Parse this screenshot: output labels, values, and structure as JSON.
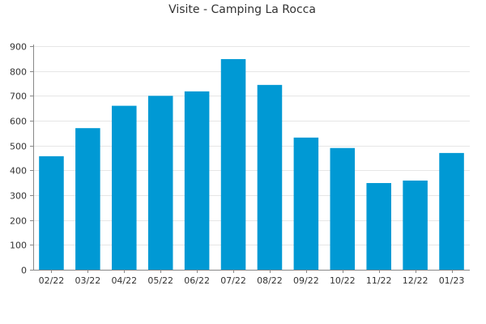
{
  "chart_data": {
    "type": "bar",
    "title": "Visite - Camping La Rocca",
    "xlabel": "",
    "ylabel": "",
    "categories": [
      "02/22",
      "03/22",
      "04/22",
      "05/22",
      "06/22",
      "07/22",
      "08/22",
      "09/22",
      "10/22",
      "11/22",
      "12/22",
      "01/23"
    ],
    "values": [
      457,
      570,
      660,
      700,
      718,
      848,
      744,
      532,
      490,
      349,
      359,
      470
    ],
    "ylim": [
      0,
      900
    ],
    "yticks": [
      0,
      100,
      200,
      300,
      400,
      500,
      600,
      700,
      800,
      900
    ],
    "grid": true,
    "legend": "none",
    "bar_color": "#0099d4"
  }
}
